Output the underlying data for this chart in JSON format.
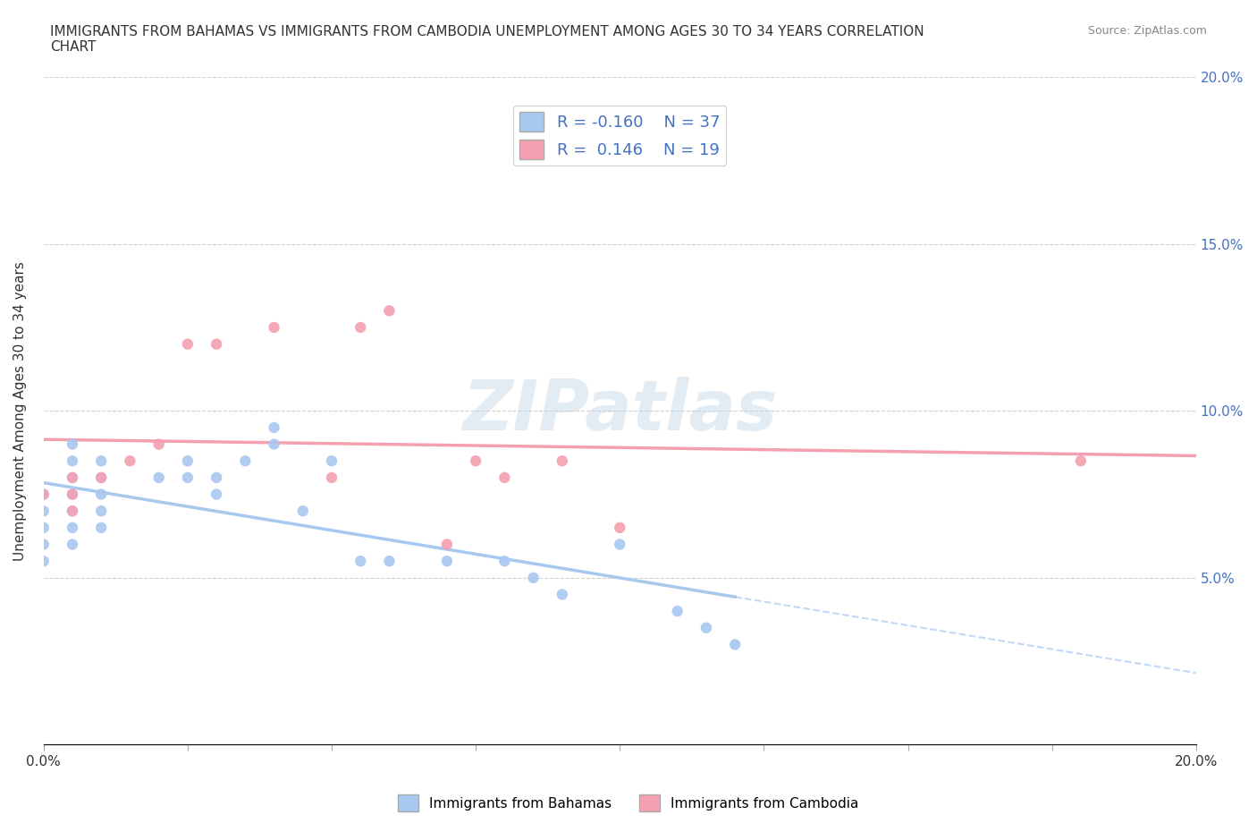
{
  "title": "IMMIGRANTS FROM BAHAMAS VS IMMIGRANTS FROM CAMBODIA UNEMPLOYMENT AMONG AGES 30 TO 34 YEARS CORRELATION\nCHART",
  "source": "Source: ZipAtlas.com",
  "ylabel": "Unemployment Among Ages 30 to 34 years",
  "xlim": [
    0.0,
    0.2
  ],
  "ylim": [
    0.0,
    0.2
  ],
  "bahamas_color": "#a8c8f0",
  "cambodia_color": "#f4a0b0",
  "bahamas_R": -0.16,
  "bahamas_N": 37,
  "cambodia_R": 0.146,
  "cambodia_N": 19,
  "bahamas_x": [
    0.0,
    0.0,
    0.0,
    0.0,
    0.0,
    0.005,
    0.005,
    0.005,
    0.005,
    0.005,
    0.005,
    0.005,
    0.01,
    0.01,
    0.01,
    0.01,
    0.01,
    0.02,
    0.025,
    0.025,
    0.03,
    0.03,
    0.035,
    0.04,
    0.04,
    0.045,
    0.05,
    0.055,
    0.06,
    0.07,
    0.08,
    0.085,
    0.09,
    0.1,
    0.11,
    0.115,
    0.12
  ],
  "bahamas_y": [
    0.055,
    0.06,
    0.065,
    0.07,
    0.075,
    0.06,
    0.065,
    0.07,
    0.075,
    0.08,
    0.085,
    0.09,
    0.065,
    0.07,
    0.075,
    0.08,
    0.085,
    0.08,
    0.08,
    0.085,
    0.075,
    0.08,
    0.085,
    0.09,
    0.095,
    0.07,
    0.085,
    0.055,
    0.055,
    0.055,
    0.055,
    0.05,
    0.045,
    0.06,
    0.04,
    0.035,
    0.03
  ],
  "cambodia_x": [
    0.0,
    0.005,
    0.005,
    0.005,
    0.01,
    0.015,
    0.02,
    0.025,
    0.03,
    0.04,
    0.05,
    0.055,
    0.06,
    0.07,
    0.075,
    0.08,
    0.09,
    0.1,
    0.18
  ],
  "cambodia_y": [
    0.075,
    0.07,
    0.075,
    0.08,
    0.08,
    0.085,
    0.09,
    0.12,
    0.12,
    0.125,
    0.08,
    0.125,
    0.13,
    0.06,
    0.085,
    0.08,
    0.085,
    0.065,
    0.085
  ],
  "grid_color": "#d0d0d0",
  "background_color": "#ffffff"
}
